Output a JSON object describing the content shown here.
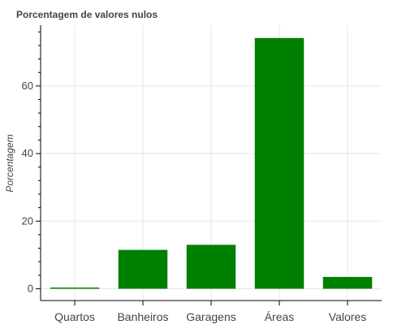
{
  "chart_data": {
    "type": "bar",
    "title": "Porcentagem de valores nulos",
    "xlabel": "",
    "ylabel": "Porcentagem",
    "categories": [
      "Quartos",
      "Banheiros",
      "Garagens",
      "Áreas",
      "Valores"
    ],
    "values": [
      0.1,
      11.5,
      13.0,
      74.2,
      3.5
    ],
    "ylim": [
      -3.5,
      78
    ],
    "yticks": [
      0,
      20,
      40,
      60
    ],
    "grid": true,
    "bar_color": "#008000"
  }
}
